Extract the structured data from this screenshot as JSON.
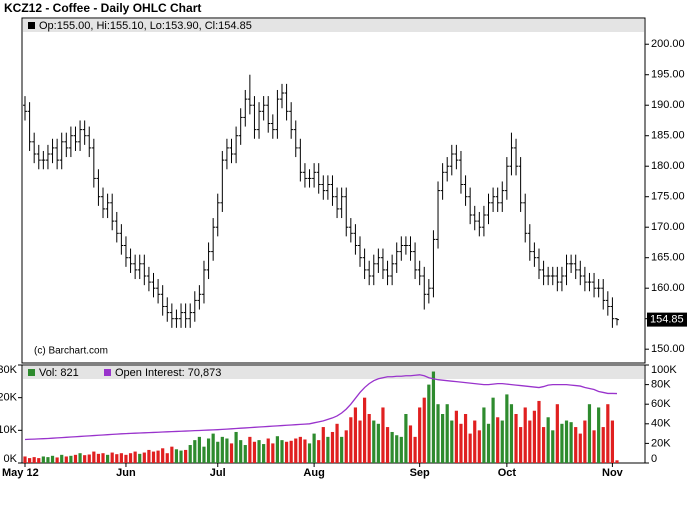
{
  "chart_data": [
    {
      "type": "ohlc",
      "title": "KCZ12 - Coffee - Daily OHLC Chart",
      "legend_label": "Op:155.00, Hi:155.10, Lo:153.90, Cl:154.85",
      "watermark": "(c) Barchart.com",
      "color": "#000000",
      "ylim": [
        147.9,
        204.3
      ],
      "yticks": [
        {
          "value": 150,
          "label": "150.00"
        },
        {
          "value": 155,
          "label": "155.00"
        },
        {
          "value": 160,
          "label": "160.00"
        },
        {
          "value": 165,
          "label": "165.00"
        },
        {
          "value": 170,
          "label": "170.00"
        },
        {
          "value": 175,
          "label": "175.00"
        },
        {
          "value": 180,
          "label": "180.00"
        },
        {
          "value": 185,
          "label": "185.00"
        },
        {
          "value": 190,
          "label": "190.00"
        },
        {
          "value": 195,
          "label": "195.00"
        },
        {
          "value": 200,
          "label": "200.00"
        }
      ],
      "open": [
        190,
        189,
        184,
        182,
        181,
        181,
        182,
        183,
        181,
        184,
        183,
        185,
        184,
        186,
        185,
        183,
        178,
        175,
        173,
        174,
        171,
        169,
        167,
        165,
        164,
        163,
        164,
        162,
        161,
        160,
        159,
        157,
        156,
        155,
        155,
        156,
        155,
        156,
        158,
        159,
        163,
        166,
        170,
        174,
        181,
        183,
        182,
        185,
        188,
        191,
        190,
        186,
        189,
        190,
        187,
        186,
        191,
        192,
        189,
        186,
        183,
        179,
        178,
        178,
        179,
        177,
        176,
        177,
        175,
        173,
        175,
        170,
        169,
        167,
        165,
        163,
        162,
        164,
        165,
        163,
        162,
        164,
        166,
        167,
        167,
        166,
        163,
        162,
        159,
        160,
        168,
        176,
        179,
        180,
        182,
        181,
        177,
        175,
        172,
        171,
        170,
        172,
        174,
        175,
        174,
        176,
        180,
        183,
        180,
        174,
        169,
        166,
        165,
        163,
        162,
        162,
        162,
        161,
        162,
        164,
        164,
        163,
        162,
        161,
        161,
        160,
        160,
        158,
        157,
        155
      ],
      "high": [
        191.5,
        190.5,
        185.5,
        183.5,
        182.5,
        183.5,
        184.5,
        184.5,
        185.5,
        185.5,
        186.5,
        186.5,
        187.5,
        187.5,
        186.5,
        184.5,
        179.5,
        176.5,
        175.5,
        175.5,
        172.5,
        170.5,
        168.5,
        166.5,
        165.5,
        165.5,
        165.5,
        163.5,
        162.5,
        161.5,
        160.5,
        158.5,
        157.5,
        156.5,
        157.5,
        157.5,
        157.5,
        159.5,
        160.5,
        164.5,
        167.5,
        171.5,
        175.5,
        182.5,
        184.5,
        184.5,
        186.5,
        189.5,
        192.5,
        195,
        191.5,
        190.5,
        191.5,
        191.5,
        188.5,
        192.5,
        193.5,
        193.5,
        190.5,
        187.5,
        184.5,
        180.5,
        179.5,
        180.5,
        180.5,
        178.5,
        178.5,
        178.5,
        176.5,
        176.5,
        176.5,
        171.5,
        170.5,
        168.5,
        166.5,
        164.5,
        165.5,
        166.5,
        166.5,
        164.5,
        165.5,
        167.5,
        168.5,
        168.5,
        168.5,
        167.5,
        164.5,
        163.5,
        161.5,
        169.5,
        177.5,
        180.5,
        181.5,
        183.5,
        183.5,
        182.5,
        178.5,
        176.5,
        173.5,
        172.5,
        173.5,
        175.5,
        176.5,
        176.5,
        177.5,
        181.5,
        185.5,
        184.5,
        181.5,
        175.5,
        170.5,
        167.5,
        166.5,
        164.5,
        163.5,
        163.5,
        163.5,
        163.5,
        165.5,
        165.5,
        165.5,
        164.5,
        163.5,
        162.5,
        162.5,
        161.5,
        161.5,
        159.5,
        158.5,
        155.1
      ],
      "low": [
        187.5,
        182.5,
        180.5,
        179.5,
        179.5,
        179.5,
        180.5,
        179.5,
        179.5,
        181.5,
        181.5,
        182.5,
        182.5,
        183.5,
        181.5,
        176.5,
        173.5,
        171.5,
        171.5,
        169.5,
        167.5,
        165.5,
        163.5,
        162.5,
        161.5,
        161.5,
        160.5,
        159.5,
        158.5,
        157.5,
        155.5,
        154.5,
        153.5,
        153.5,
        153.5,
        153.5,
        153.5,
        154.5,
        156.5,
        157.5,
        161.5,
        164.5,
        168.5,
        172.5,
        179.5,
        180.5,
        180.5,
        183.5,
        186.5,
        188.5,
        184.5,
        184.5,
        187.5,
        185.5,
        184.5,
        184.5,
        189.5,
        187.5,
        184.5,
        181.5,
        177.5,
        176.5,
        176.5,
        176.5,
        175.5,
        174.5,
        174.5,
        173.5,
        171.5,
        171.5,
        168.5,
        167.5,
        165.5,
        163.5,
        161.5,
        160.5,
        160.5,
        162.5,
        161.5,
        160.5,
        160.5,
        162.5,
        164.5,
        165.5,
        164.5,
        161.5,
        160.5,
        156.5,
        157.5,
        158.5,
        166.5,
        174.5,
        177.5,
        178.5,
        179.5,
        175.5,
        173.5,
        170.5,
        169.5,
        168.5,
        168.5,
        170.5,
        172.5,
        172.5,
        172.5,
        174.5,
        178.5,
        178.5,
        172.5,
        167.5,
        164.5,
        163.5,
        161.5,
        160.5,
        160.5,
        160.5,
        159.5,
        159.5,
        160.5,
        162.5,
        161.5,
        160.5,
        159.5,
        159.5,
        158.5,
        158.5,
        156.5,
        155.5,
        153.5,
        153.9
      ],
      "close": [
        189,
        184,
        182,
        181,
        181,
        182,
        183,
        181,
        184,
        183,
        185,
        184,
        186,
        185,
        183,
        178,
        175,
        173,
        174,
        171,
        169,
        167,
        165,
        164,
        163,
        164,
        162,
        161,
        160,
        159,
        157,
        156,
        155,
        155,
        156,
        155,
        156,
        158,
        159,
        163,
        166,
        170,
        174,
        181,
        183,
        182,
        185,
        188,
        191,
        190,
        186,
        189,
        190,
        187,
        186,
        191,
        192,
        189,
        186,
        183,
        179,
        178,
        178,
        179,
        177,
        176,
        177,
        175,
        173,
        175,
        170,
        169,
        167,
        165,
        163,
        162,
        164,
        165,
        163,
        162,
        164,
        166,
        167,
        167,
        166,
        163,
        162,
        159,
        160,
        168,
        176,
        179,
        180,
        182,
        181,
        177,
        175,
        172,
        171,
        170,
        172,
        174,
        175,
        174,
        176,
        180,
        183,
        180,
        174,
        169,
        166,
        165,
        163,
        162,
        162,
        162,
        161,
        162,
        164,
        164,
        163,
        162,
        161,
        161,
        160,
        160,
        158,
        157,
        155,
        154.85
      ]
    },
    {
      "type": "bar-line",
      "up_color": "#2e8b2e",
      "down_color": "#e02020",
      "categories": [
        "May 12",
        null,
        null,
        null,
        null,
        null,
        null,
        null,
        null,
        null,
        null,
        null,
        null,
        null,
        null,
        null,
        null,
        null,
        null,
        null,
        null,
        null,
        "Jun",
        null,
        null,
        null,
        null,
        null,
        null,
        null,
        null,
        null,
        null,
        null,
        null,
        null,
        null,
        null,
        null,
        null,
        null,
        null,
        "Jul",
        null,
        null,
        null,
        null,
        null,
        null,
        null,
        null,
        null,
        null,
        null,
        null,
        null,
        null,
        null,
        null,
        null,
        null,
        null,
        null,
        "Aug",
        null,
        null,
        null,
        null,
        null,
        null,
        null,
        null,
        null,
        null,
        null,
        null,
        null,
        null,
        null,
        null,
        null,
        null,
        null,
        null,
        null,
        null,
        "Sep",
        null,
        null,
        null,
        null,
        null,
        null,
        null,
        null,
        null,
        null,
        null,
        null,
        null,
        null,
        null,
        null,
        null,
        null,
        "Oct",
        null,
        null,
        null,
        null,
        null,
        null,
        null,
        null,
        null,
        null,
        null,
        null,
        null,
        null,
        null,
        null,
        null,
        null,
        null,
        null,
        null,
        null,
        "Nov",
        null
      ],
      "ylim": [
        0,
        30000
      ],
      "yticks": [
        {
          "value": 0,
          "label": "0K"
        },
        {
          "value": 10000,
          "label": "10K"
        },
        {
          "value": 20000,
          "label": "20K"
        },
        {
          "value": 30000,
          "label": "30K"
        }
      ],
      "y2lim": [
        0,
        100000
      ],
      "y2ticks": [
        0,
        {
          "value": 20000,
          "label": "20K"
        },
        {
          "value": 40000,
          "label": "40K"
        },
        {
          "value": 60000,
          "label": "60K"
        },
        {
          "value": 80000,
          "label": "80K"
        },
        {
          "value": 100000,
          "label": "100K"
        }
      ],
      "series": [
        {
          "name": "Vol: 821",
          "color": "#2e8b2e",
          "values": [
            2000,
            1500,
            1800,
            1500,
            2000,
            1800,
            2200,
            1700,
            2500,
            2000,
            2200,
            2500,
            3000,
            2400,
            2600,
            3500,
            2800,
            3000,
            2500,
            3200,
            2700,
            3000,
            2500,
            3000,
            3500,
            2800,
            3200,
            4000,
            3500,
            3800,
            4500,
            3000,
            5000,
            4200,
            3800,
            4000,
            5500,
            7000,
            8000,
            5000,
            7500,
            9000,
            6500,
            8000,
            7500,
            6000,
            9500,
            7000,
            5500,
            8000,
            6500,
            7000,
            5800,
            7500,
            6000,
            8200,
            7000,
            6500,
            6800,
            7500,
            8000,
            7200,
            6000,
            9000,
            7000,
            11000,
            8000,
            9500,
            12000,
            8000,
            10000,
            14000,
            17000,
            13000,
            20000,
            15000,
            13000,
            12000,
            17000,
            11000,
            9500,
            8500,
            8000,
            15000,
            11500,
            8000,
            17000,
            20000,
            24000,
            28000,
            18000,
            15000,
            18000,
            13000,
            16000,
            12000,
            15000,
            9000,
            13000,
            10000,
            17000,
            12000,
            20000,
            14000,
            13000,
            21000,
            18000,
            15000,
            11000,
            17000,
            13000,
            16000,
            19000,
            11000,
            14000,
            10000,
            18000,
            12000,
            13000,
            12500,
            11000,
            9000,
            13000,
            18000,
            10000,
            17000,
            11000,
            18000,
            13000,
            821
          ]
        },
        {
          "name": "Open Interest: 70,873",
          "color": "#9933cc",
          "axis": "y2",
          "values": [
            24000,
            24200,
            24400,
            24600,
            24800,
            25000,
            25300,
            25600,
            25900,
            26200,
            26500,
            26800,
            27100,
            27400,
            27700,
            28000,
            28300,
            28600,
            28900,
            29200,
            29500,
            29800,
            30000,
            30200,
            30400,
            30600,
            30800,
            31000,
            31200,
            31400,
            31600,
            31800,
            32000,
            32200,
            32400,
            32600,
            32800,
            33000,
            33200,
            33400,
            33600,
            33800,
            34000,
            34300,
            34600,
            34900,
            35200,
            35500,
            35800,
            36100,
            36400,
            36700,
            37000,
            37300,
            37600,
            37900,
            38200,
            38500,
            38800,
            39100,
            39400,
            39700,
            40000,
            41000,
            42000,
            43000,
            44500,
            46000,
            48000,
            51000,
            55000,
            60000,
            66000,
            72000,
            77000,
            81000,
            84000,
            86000,
            87000,
            88000,
            88000,
            88500,
            88500,
            89000,
            89000,
            89500,
            90000,
            89000,
            87000,
            86000,
            85000,
            84500,
            84000,
            83500,
            83000,
            82500,
            82000,
            81500,
            81000,
            80500,
            80000,
            80000,
            80500,
            81000,
            81000,
            80500,
            80000,
            79500,
            79000,
            78500,
            78000,
            77500,
            77000,
            78000,
            79500,
            80000,
            80000,
            80000,
            80000,
            79500,
            79000,
            78500,
            77000,
            76000,
            75000,
            73000,
            72000,
            71000,
            71000,
            70873
          ]
        }
      ]
    }
  ]
}
